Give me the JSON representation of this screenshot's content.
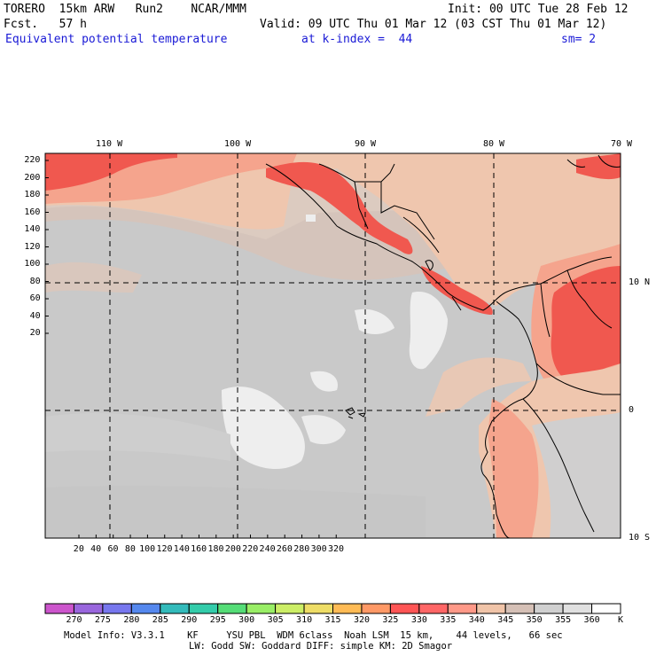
{
  "header": {
    "line1_left": "TORERO  15km ARW   Run2    NCAR/MMM",
    "line1_right": "Init: 00 UTC Tue 28 Feb 12",
    "line2_left": "Fcst.   57 h",
    "line2_right": "Valid: 09 UTC Thu 01 Mar 12 (03 CST Thu 01 Mar 12)",
    "line3_field": "Equivalent potential temperature",
    "line3_level": "at k-index =  44",
    "line3_smooth": "sm= 2"
  },
  "map": {
    "lon_labels": [
      "110 W",
      "100 W",
      "90 W",
      "80 W",
      "70 W"
    ],
    "lat_labels": [
      "10 N",
      "0",
      "10 S"
    ],
    "y_ticks": [
      "220",
      "200",
      "180",
      "160",
      "140",
      "120",
      "100",
      "80",
      "60",
      "40",
      "20"
    ],
    "x_ticks": [
      "20",
      "40",
      "60",
      "80",
      "100",
      "120",
      "140",
      "160",
      "180",
      "200",
      "220",
      "240",
      "260",
      "280",
      "300",
      "320"
    ],
    "colors": {
      "bg_low": "#c8c8c8",
      "bg_mid": "#d2d2d2",
      "tan": "#d9c3b7",
      "peach": "#f0c4a8",
      "salmon": "#f59a82",
      "red": "#f05a50",
      "white": "#eeeeee"
    }
  },
  "colorbar": {
    "labels": [
      "270",
      "275",
      "280",
      "285",
      "290",
      "295",
      "300",
      "305",
      "310",
      "315",
      "320",
      "325",
      "330",
      "335",
      "340",
      "345",
      "350",
      "355",
      "360"
    ],
    "unit": "K",
    "colors": [
      "#cc55cc",
      "#9966dd",
      "#7777ee",
      "#5588ee",
      "#33bbbb",
      "#33ccaa",
      "#55dd77",
      "#99ee66",
      "#ccee66",
      "#eedd66",
      "#ffbb55",
      "#ff9966",
      "#ff5555",
      "#ff6666",
      "#ff9988",
      "#f0c4a8",
      "#d5c0b6",
      "#d0d0d0",
      "#e0e0e0",
      "#ffffff"
    ]
  },
  "footer": {
    "line1": "Model Info: V3.3.1    KF     YSU PBL  WDM 6class  Noah LSM  15 km,    44 levels,   66 sec",
    "line2": "LW: Godd SW: Goddard DIFF: simple KM: 2D Smagor"
  }
}
